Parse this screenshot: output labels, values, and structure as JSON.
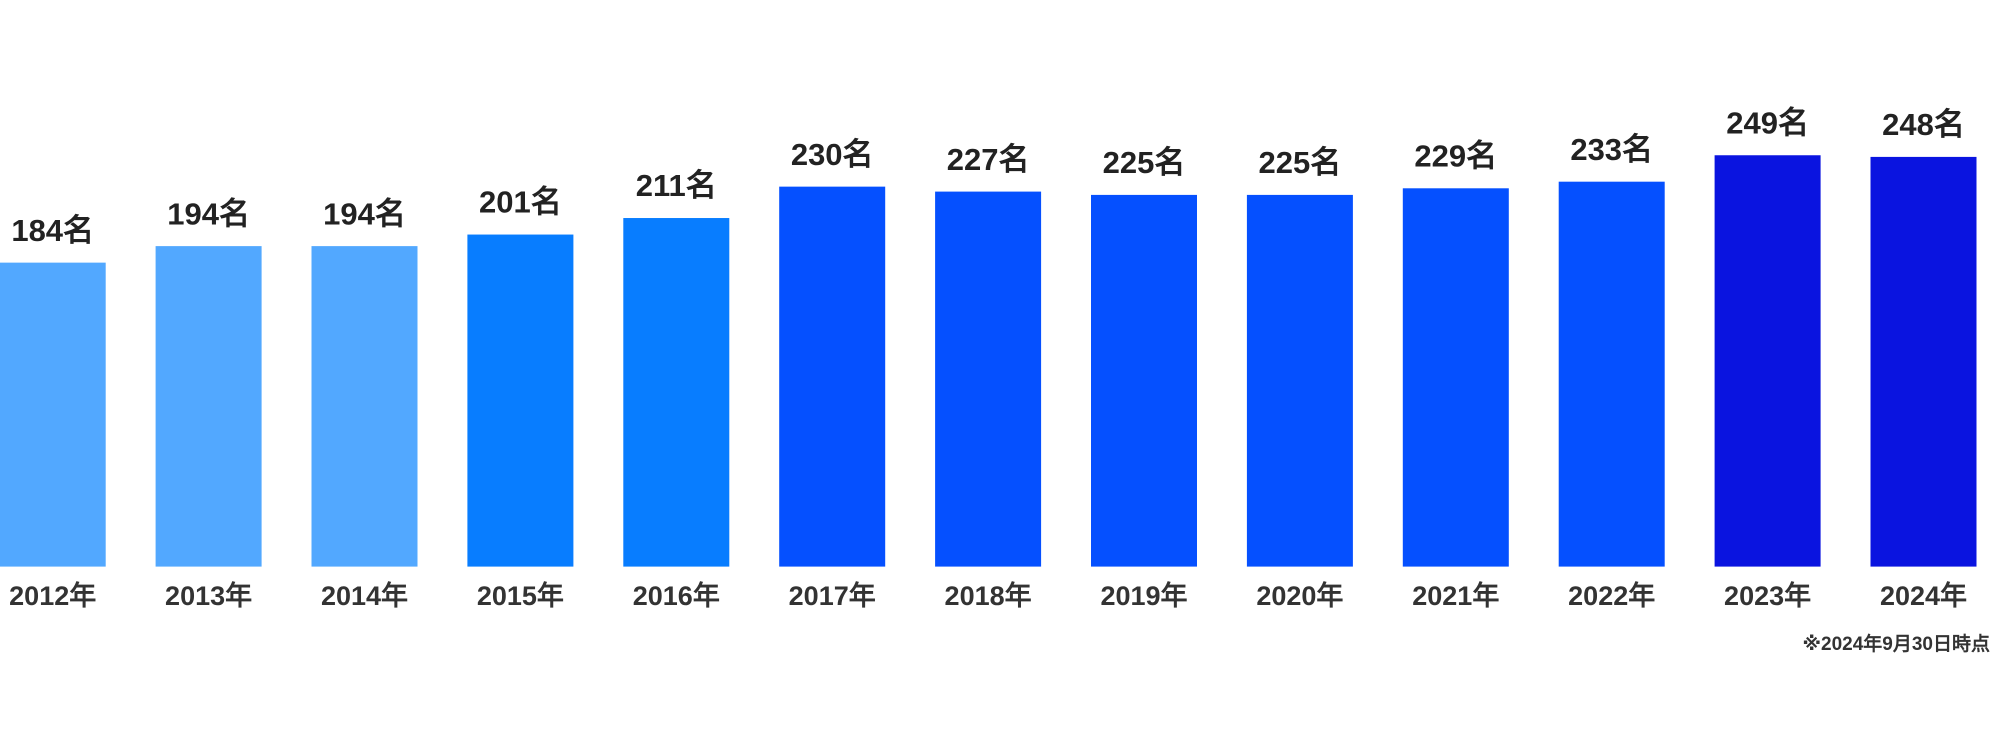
{
  "chart_data": {
    "type": "bar",
    "categories": [
      "2012年",
      "2013年",
      "2014年",
      "2015年",
      "2016年",
      "2017年",
      "2018年",
      "2019年",
      "2020年",
      "2021年",
      "2022年",
      "2023年",
      "2024年"
    ],
    "values": [
      184,
      194,
      194,
      201,
      211,
      230,
      227,
      225,
      225,
      229,
      233,
      249,
      248
    ],
    "value_labels": [
      "184名",
      "194名",
      "194名",
      "201名",
      "211名",
      "230名",
      "227名",
      "225名",
      "225名",
      "229名",
      "233名",
      "249名",
      "248名"
    ],
    "colors": [
      "#52a8ff",
      "#52a8ff",
      "#52a8ff",
      "#087dff",
      "#087dff",
      "#0550ff",
      "#0550ff",
      "#0550ff",
      "#0550ff",
      "#0550ff",
      "#0550ff",
      "#0a14e0",
      "#0a14e0"
    ],
    "note": "※2024年9月30日時点"
  }
}
